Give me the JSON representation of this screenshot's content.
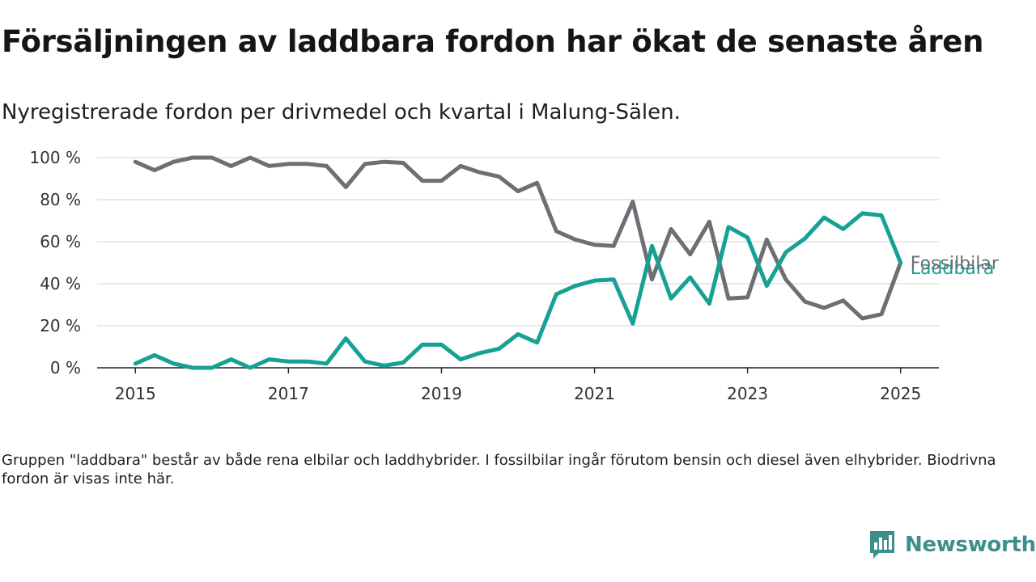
{
  "title": "Försäljningen av laddbara fordon har ökat de senaste åren",
  "subtitle": "Nyregistrerade fordon per drivmedel och kvartal i Malung-Sälen.",
  "note": "Gruppen \"laddbara\" består av både rena elbilar och laddhybrider. I fossilbilar ingår förutom bensin och diesel även elhybrider. Biodrivna fordon är visas inte här.",
  "brand": {
    "name": "Newsworthy",
    "icon": "newsworthy-logo-icon",
    "color": "#3e8e8c"
  },
  "chart_data": {
    "type": "line",
    "x_ticks": [
      2015,
      2017,
      2019,
      2021,
      2023,
      2025
    ],
    "y_ticks": [
      0,
      20,
      40,
      60,
      80,
      100
    ],
    "y_tick_labels": [
      "0 %",
      "20 %",
      "40 %",
      "60 %",
      "80 %",
      "100 %"
    ],
    "xlim": [
      2014.5,
      2025.5
    ],
    "ylim": [
      0,
      100
    ],
    "grid": true,
    "x": [
      2015.0,
      2015.25,
      2015.5,
      2015.75,
      2016.0,
      2016.25,
      2016.5,
      2016.75,
      2017.0,
      2017.25,
      2017.5,
      2017.75,
      2018.0,
      2018.25,
      2018.5,
      2018.75,
      2019.0,
      2019.25,
      2019.5,
      2019.75,
      2020.0,
      2020.25,
      2020.5,
      2020.75,
      2021.0,
      2021.25,
      2021.5,
      2021.75,
      2022.0,
      2022.25,
      2022.5,
      2022.75,
      2023.0,
      2023.25,
      2023.5,
      2023.75,
      2024.0,
      2024.25,
      2024.5,
      2024.75,
      2025.0
    ],
    "series": [
      {
        "name": "Fossilbilar",
        "color": "#6e6e75",
        "values": [
          98,
          94,
          98,
          100,
          100,
          96,
          100,
          96,
          97,
          97,
          96,
          86,
          97,
          98,
          97.5,
          89,
          89,
          96,
          93,
          91,
          84,
          88,
          65,
          61,
          58.5,
          58,
          79,
          42,
          66,
          54,
          69.5,
          33,
          33.5,
          61,
          42,
          31.5,
          28.5,
          32,
          23.5,
          25.5,
          50
        ]
      },
      {
        "name": "Laddbara",
        "color": "#16a193",
        "values": [
          2,
          6,
          2,
          0,
          0,
          4,
          0,
          4,
          3,
          3,
          2,
          14,
          3,
          1,
          2.5,
          11,
          11,
          4,
          7,
          9,
          16,
          12,
          35,
          39,
          41.5,
          42,
          21,
          58,
          33,
          43,
          30.5,
          67,
          62,
          39,
          55,
          61.5,
          71.5,
          66,
          73.5,
          72.5,
          50
        ]
      }
    ]
  }
}
